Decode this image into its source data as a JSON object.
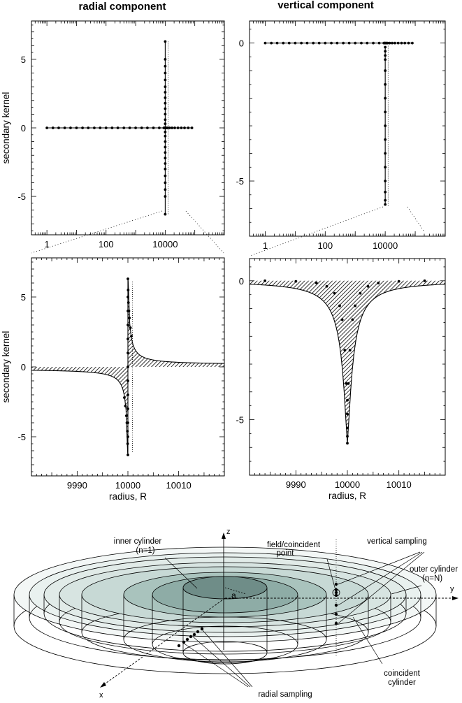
{
  "titles": {
    "radial": "radial component",
    "vertical": "vertical component"
  },
  "chart_data": [
    {
      "id": "radial-overview",
      "type": "line",
      "title": "radial component",
      "xlabel": "",
      "ylabel": "secondary kernel",
      "xscale": "log",
      "xlim": [
        0.3,
        1000000
      ],
      "ylim": [
        -7.8,
        7.8
      ],
      "xticks": [
        {
          "v": 1,
          "label": "1"
        },
        {
          "v": 100,
          "label": "100"
        },
        {
          "v": 10000,
          "label": "10000"
        }
      ],
      "yticks": [
        {
          "v": -5,
          "label": "-5"
        },
        {
          "v": 0,
          "label": "0"
        },
        {
          "v": 5,
          "label": "5"
        }
      ],
      "series": [
        {
          "x": [
            1,
            1.6,
            2.5,
            4,
            6.3,
            10,
            16,
            25,
            40,
            63,
            100,
            160,
            250,
            400,
            630,
            1000,
            1600,
            2500,
            4000,
            6300,
            9000,
            9500,
            9800
          ],
          "y": [
            0,
            0,
            0,
            0,
            0,
            0,
            0,
            0,
            0,
            0,
            0,
            0,
            0,
            0,
            0,
            0,
            0,
            0,
            0,
            0,
            0,
            0,
            0
          ]
        },
        {
          "x": [
            10000,
            10000,
            10000,
            10000,
            10000,
            10000,
            10000,
            10000,
            10000,
            10000,
            10000,
            10000,
            10000,
            10000,
            10000,
            10000,
            10000,
            10000,
            10000,
            10000,
            10000,
            10000,
            10000,
            10000,
            10000,
            10000
          ],
          "y": [
            6.3,
            5.0,
            4.5,
            4.0,
            3.5,
            3.0,
            2.6,
            2.2,
            1.8,
            1.4,
            1.0,
            0.6,
            0.3,
            -0.3,
            -0.6,
            -1.0,
            -1.4,
            -1.8,
            -2.2,
            -2.6,
            -3.0,
            -3.5,
            -4.0,
            -4.5,
            -5.0,
            -6.3
          ]
        },
        {
          "x": [
            10500,
            11000,
            12000,
            14000,
            17000,
            21000,
            27000,
            35000,
            45000,
            60000,
            80000
          ],
          "y": [
            0,
            0,
            0,
            0,
            0,
            0,
            0,
            0,
            0,
            0,
            0
          ]
        }
      ]
    },
    {
      "id": "vertical-overview",
      "type": "line",
      "title": "vertical component",
      "xlabel": "",
      "ylabel": "",
      "xscale": "log",
      "xlim": [
        0.3,
        1000000
      ],
      "ylim": [
        -7,
        0.8
      ],
      "xticks": [
        {
          "v": 1,
          "label": "1"
        },
        {
          "v": 100,
          "label": "100"
        },
        {
          "v": 10000,
          "label": "10000"
        }
      ],
      "yticks": [
        {
          "v": -5,
          "label": "-5"
        },
        {
          "v": 0,
          "label": "0"
        }
      ],
      "series": [
        {
          "x": [
            1,
            1.6,
            2.5,
            4,
            6.3,
            10,
            16,
            25,
            40,
            63,
            100,
            160,
            250,
            400,
            630,
            1000,
            1600,
            2500,
            4000,
            6300,
            9000,
            9500,
            9800,
            10500,
            11000,
            12000,
            14000,
            17000,
            21000,
            27000,
            35000,
            45000,
            60000,
            80000
          ],
          "y": [
            0,
            0,
            0,
            0,
            0,
            0,
            0,
            0,
            0,
            0,
            0,
            0,
            0,
            0,
            0,
            0,
            0,
            0,
            0,
            0,
            0,
            0,
            0,
            0,
            0,
            0,
            0,
            0,
            0,
            0,
            0,
            0,
            0,
            0
          ]
        },
        {
          "x": [
            10000,
            10000,
            10000,
            10000,
            10000,
            10000,
            10000,
            10000,
            10000,
            10000,
            10000,
            10000,
            10000,
            10000,
            10000,
            10000
          ],
          "y": [
            -0.3,
            -0.6,
            -1.0,
            -1.5,
            -2.0,
            -2.5,
            -3.0,
            -3.5,
            -4.0,
            -4.5,
            -5.0,
            -5.4,
            -5.7,
            -5.85,
            -0.15,
            -0.45
          ]
        }
      ]
    },
    {
      "id": "radial-zoom",
      "type": "line",
      "title": "",
      "xlabel": "radius, R",
      "ylabel": "secondary kernel",
      "xlim": [
        9981,
        10019
      ],
      "ylim": [
        -7.8,
        7.8
      ],
      "xticks": [
        {
          "v": 9990,
          "label": "9990"
        },
        {
          "v": 10000,
          "label": "10000"
        },
        {
          "v": 10010,
          "label": "10010"
        }
      ],
      "yticks": [
        {
          "v": -5,
          "label": "-5"
        },
        {
          "v": 0,
          "label": "0"
        },
        {
          "v": 5,
          "label": "5"
        }
      ],
      "series": [
        {
          "x": [
            9999.3,
            9999.5,
            9999.7,
            9999.8,
            9999.9,
            9999.95,
            10000,
            10000,
            10000,
            10000,
            10000,
            10000,
            10000,
            10000,
            10000,
            10000,
            10000,
            10000,
            10000,
            10000.05,
            10000.1,
            10000.2,
            10000.3,
            10000.5,
            10000.7
          ],
          "y": [
            -2.2,
            -2.8,
            -3.5,
            -4.0,
            -4.6,
            -5.5,
            -6.3,
            -5.0,
            -4.0,
            -3.0,
            -2.0,
            -1.0,
            0,
            1.0,
            2.0,
            3.0,
            4.0,
            5.0,
            6.3,
            5.5,
            4.6,
            4.0,
            3.5,
            2.8,
            2.2
          ]
        }
      ]
    },
    {
      "id": "vertical-zoom",
      "type": "line",
      "title": "",
      "xlabel": "radius, R",
      "ylabel": "",
      "xlim": [
        9981,
        10019
      ],
      "ylim": [
        -7,
        0.8
      ],
      "xticks": [
        {
          "v": 9990,
          "label": "9990"
        },
        {
          "v": 10000,
          "label": "10000"
        },
        {
          "v": 10010,
          "label": "10010"
        }
      ],
      "yticks": [
        {
          "v": -5,
          "label": "-5"
        },
        {
          "v": 0,
          "label": "0"
        }
      ],
      "series": [
        {
          "x": [
            9984,
            9990,
            9994,
            9996,
            9997.5,
            9998.5,
            9999,
            9999.5,
            9999.8,
            10000,
            10000,
            10000,
            10000,
            10000,
            10000.2,
            10000.5,
            10001,
            10001.5,
            10002.5,
            10004,
            10006,
            10010,
            10015
          ],
          "y": [
            0,
            -0.02,
            -0.08,
            -0.2,
            -0.45,
            -0.9,
            -1.4,
            -2.5,
            -3.7,
            -4.3,
            -4.8,
            -5.3,
            -5.6,
            -5.85,
            -3.7,
            -2.5,
            -1.4,
            -0.9,
            -0.45,
            -0.2,
            -0.08,
            -0.02,
            0
          ]
        }
      ]
    }
  ],
  "diagram": {
    "labels": {
      "z_axis": "z",
      "y_axis": "y",
      "x_axis": "x",
      "a_label": "a",
      "inner_cylinder": "inner cylinder",
      "inner_n": "(n=1)",
      "field_point_1": "field/coincident",
      "field_point_2": "point",
      "vertical_sampling": "vertical sampling",
      "outer_cylinder": "outer cylinder",
      "outer_n": "(n=N)",
      "coincident_1": "coincident",
      "coincident_2": "cylinder",
      "radial_sampling": "radial sampling"
    },
    "colors": {
      "disc_light": "#eef4f2",
      "disc_mid": "#c8dad6",
      "disc_dark": "#7f9c97",
      "disc_core": "#5a7773"
    }
  }
}
